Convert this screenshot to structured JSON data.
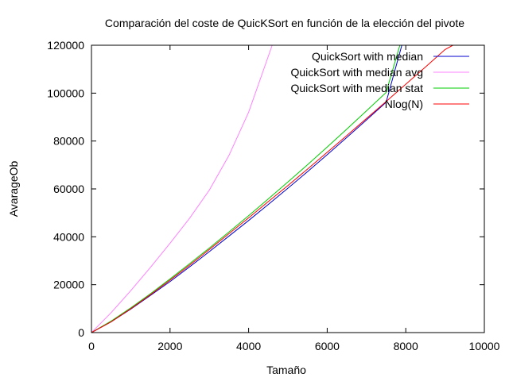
{
  "chart_data": {
    "type": "line",
    "title": "Comparación del coste de QuicKSort en función de la elección del pivote",
    "xlabel": "Tamaño",
    "ylabel": "AvarageOb",
    "xlim": [
      0,
      10000
    ],
    "ylim": [
      0,
      120000
    ],
    "xticks": [
      0,
      2000,
      4000,
      6000,
      8000,
      10000
    ],
    "yticks": [
      0,
      20000,
      40000,
      60000,
      80000,
      100000,
      120000
    ],
    "xtick_labels": [
      "0",
      "2000",
      "4000",
      "6000",
      "8000",
      "10000"
    ],
    "ytick_labels": [
      "0",
      "20000",
      "40000",
      "60000",
      "80000",
      "100000",
      "120000"
    ],
    "grid": false,
    "legend_position": "top-right",
    "series": [
      {
        "name": "QuickSort with median",
        "color": "#0000cc",
        "x": [
          0,
          500,
          1000,
          1500,
          2000,
          2500,
          3000,
          3500,
          4000,
          4500,
          5000,
          5500,
          6000,
          6500,
          7000,
          7500,
          7900
        ],
        "y": [
          0,
          4500,
          9800,
          15500,
          21300,
          27500,
          33800,
          40300,
          46800,
          53500,
          60300,
          67200,
          74300,
          81500,
          88800,
          96200,
          120000
        ]
      },
      {
        "name": "QuickSort with median avg",
        "color": "#ff80ff",
        "x": [
          0,
          500,
          1000,
          1500,
          2000,
          2500,
          3000,
          3500,
          4000,
          4300,
          4600
        ],
        "y": [
          0,
          8300,
          17500,
          27200,
          37300,
          47800,
          59500,
          74000,
          92000,
          106000,
          120000
        ]
      },
      {
        "name": "QuickSort with median stat",
        "color": "#00cc00",
        "x": [
          0,
          500,
          1000,
          1500,
          2000,
          2500,
          3000,
          3500,
          4000,
          4500,
          5000,
          5500,
          6000,
          6500,
          7000,
          7500,
          7850
        ],
        "y": [
          0,
          4800,
          10300,
          16200,
          22400,
          28800,
          35300,
          42000,
          48800,
          55800,
          62900,
          70100,
          77500,
          85000,
          92600,
          100300,
          120000
        ]
      },
      {
        "name": "Nlog(N)",
        "color": "#ff0000",
        "x": [
          0,
          500,
          1000,
          1500,
          2000,
          2500,
          3000,
          3500,
          4000,
          4500,
          5000,
          5500,
          6000,
          6500,
          7000,
          7500,
          8000,
          8500,
          9000,
          9200
        ],
        "y": [
          0,
          4500,
          9970,
          15800,
          21900,
          28200,
          34700,
          41300,
          47900,
          54700,
          61400,
          68300,
          75300,
          82300,
          89400,
          96500,
          103700,
          110900,
          118200,
          120000
        ]
      }
    ]
  }
}
